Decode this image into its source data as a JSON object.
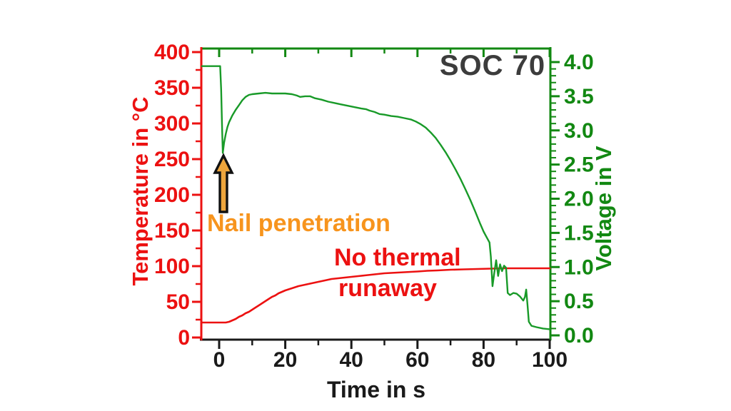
{
  "annotations": {
    "nail_penetration": "Nail penetration",
    "no_thermal_line1": "No thermal",
    "no_thermal_line2": "runaway"
  },
  "colors": {
    "temperature_red": "#EC1111",
    "voltage_green": "#128812",
    "orange_text": "#F7941D",
    "arrow_fill": "#EDA53C",
    "arrow_outline": "#111111",
    "soc_gray": "#3C3C3C",
    "axis_black": "#1A1A1A",
    "background": "#FFFFFF"
  },
  "chart_data": {
    "type": "line",
    "title": "SOC 70",
    "xlabel": "Time in s",
    "ylabel_left": "Temperature in °C",
    "ylabel_right": "Voltage in V",
    "xlim": [
      -5.4,
      100
    ],
    "ylim_left": [
      0,
      400
    ],
    "ylim_right": [
      0.0,
      4.0
    ],
    "grid": false,
    "legend": "none",
    "x_ticks": [
      0,
      20,
      40,
      60,
      80,
      100
    ],
    "x_minor_step": 10,
    "y_ticks_left": [
      0,
      50,
      100,
      150,
      200,
      250,
      300,
      350,
      400
    ],
    "y_minor_step_left": 25,
    "y_ticks_right": [
      "0.0",
      "0.5",
      "1.0",
      "1.5",
      "2.0",
      "2.5",
      "3.0",
      "3.5",
      "4.0"
    ],
    "y_minor_step_right": 0.1,
    "event": {
      "label": "Nail penetration",
      "time_s": 1,
      "voltage_dip_V": 2.67
    },
    "series": [
      {
        "name": "Temperature",
        "axis": "left",
        "unit": "°C",
        "color": "#EC1111",
        "points": [
          [
            -5.2,
            21
          ],
          [
            0,
            21
          ],
          [
            2,
            21
          ],
          [
            3,
            22
          ],
          [
            4,
            24
          ],
          [
            5,
            26
          ],
          [
            6,
            29
          ],
          [
            7,
            31
          ],
          [
            8,
            34
          ],
          [
            9,
            36
          ],
          [
            10,
            39
          ],
          [
            11,
            42
          ],
          [
            12,
            45
          ],
          [
            13,
            48
          ],
          [
            14,
            51
          ],
          [
            15,
            54
          ],
          [
            16,
            57
          ],
          [
            17,
            59
          ],
          [
            18,
            62
          ],
          [
            19,
            64
          ],
          [
            20,
            66
          ],
          [
            22,
            69
          ],
          [
            24,
            72
          ],
          [
            26,
            74
          ],
          [
            28,
            76
          ],
          [
            30,
            78
          ],
          [
            32,
            80
          ],
          [
            34,
            82
          ],
          [
            36,
            83
          ],
          [
            38,
            84
          ],
          [
            40,
            85
          ],
          [
            42,
            86
          ],
          [
            44,
            87
          ],
          [
            46,
            88
          ],
          [
            48,
            89
          ],
          [
            50,
            90
          ],
          [
            52,
            90.5
          ],
          [
            54,
            91
          ],
          [
            56,
            91.5
          ],
          [
            58,
            92
          ],
          [
            60,
            92.5
          ],
          [
            63,
            93.5
          ],
          [
            66,
            94
          ],
          [
            70,
            95
          ],
          [
            74,
            95.5
          ],
          [
            78,
            96
          ],
          [
            82,
            96.5
          ],
          [
            86,
            97
          ],
          [
            90,
            97
          ],
          [
            95,
            97
          ],
          [
            100,
            97
          ]
        ]
      },
      {
        "name": "Voltage",
        "axis": "right",
        "unit": "V",
        "color": "#189A28",
        "points": [
          [
            -5.2,
            3.94
          ],
          [
            0.3,
            3.94
          ],
          [
            0.6,
            3.6
          ],
          [
            0.9,
            3.0
          ],
          [
            1.1,
            2.67
          ],
          [
            1.5,
            2.82
          ],
          [
            2,
            2.95
          ],
          [
            2.5,
            3.05
          ],
          [
            3,
            3.12
          ],
          [
            4,
            3.22
          ],
          [
            5,
            3.3
          ],
          [
            6,
            3.37
          ],
          [
            7,
            3.44
          ],
          [
            8,
            3.49
          ],
          [
            9,
            3.52
          ],
          [
            10,
            3.53
          ],
          [
            12,
            3.54
          ],
          [
            14,
            3.55
          ],
          [
            16,
            3.54
          ],
          [
            18,
            3.54
          ],
          [
            20,
            3.54
          ],
          [
            22,
            3.53
          ],
          [
            23.5,
            3.51
          ],
          [
            24.5,
            3.49
          ],
          [
            26,
            3.5
          ],
          [
            27.5,
            3.5
          ],
          [
            29,
            3.47
          ],
          [
            31,
            3.45
          ],
          [
            33,
            3.42
          ],
          [
            35,
            3.4
          ],
          [
            37,
            3.38
          ],
          [
            39,
            3.36
          ],
          [
            41,
            3.34
          ],
          [
            43,
            3.32
          ],
          [
            44.5,
            3.31
          ],
          [
            45.5,
            3.29
          ],
          [
            47,
            3.27
          ],
          [
            48.5,
            3.24
          ],
          [
            50,
            3.23
          ],
          [
            52,
            3.21
          ],
          [
            54,
            3.2
          ],
          [
            56,
            3.18
          ],
          [
            58,
            3.16
          ],
          [
            59.5,
            3.13
          ],
          [
            61,
            3.09
          ],
          [
            62.5,
            3.04
          ],
          [
            64,
            2.97
          ],
          [
            65.5,
            2.89
          ],
          [
            67,
            2.79
          ],
          [
            68.5,
            2.68
          ],
          [
            70,
            2.56
          ],
          [
            71.5,
            2.43
          ],
          [
            73,
            2.29
          ],
          [
            74.5,
            2.14
          ],
          [
            76,
            1.98
          ],
          [
            77.5,
            1.81
          ],
          [
            79,
            1.63
          ],
          [
            80,
            1.52
          ],
          [
            81,
            1.43
          ],
          [
            81.8,
            1.36
          ],
          [
            82.2,
            1.15
          ],
          [
            82.7,
            0.72
          ],
          [
            83.2,
            0.9
          ],
          [
            83.8,
            1.1
          ],
          [
            84.4,
            0.87
          ],
          [
            85,
            1.04
          ],
          [
            85.6,
            0.94
          ],
          [
            86.2,
            1.02
          ],
          [
            86.8,
            0.99
          ],
          [
            87.3,
            0.62
          ],
          [
            88,
            0.59
          ],
          [
            89,
            0.62
          ],
          [
            90,
            0.61
          ],
          [
            91,
            0.57
          ],
          [
            92,
            0.51
          ],
          [
            92.5,
            0.56
          ],
          [
            92.9,
            0.67
          ],
          [
            93.3,
            0.44
          ],
          [
            93.7,
            0.2
          ],
          [
            94.5,
            0.14
          ],
          [
            96,
            0.12
          ],
          [
            98,
            0.1
          ],
          [
            100,
            0.09
          ]
        ]
      }
    ]
  }
}
